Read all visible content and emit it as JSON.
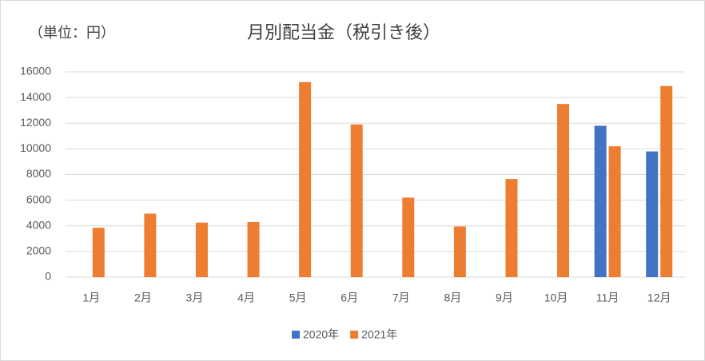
{
  "chart_data": {
    "type": "bar",
    "title": "月別配当金（税引き後）",
    "unit_label": "（単位：円）",
    "categories": [
      "1月",
      "2月",
      "3月",
      "4月",
      "5月",
      "6月",
      "7月",
      "8月",
      "9月",
      "10月",
      "11月",
      "12月"
    ],
    "series": [
      {
        "name": "2020年",
        "color": "#4472c4",
        "values": [
          null,
          null,
          null,
          null,
          null,
          null,
          null,
          null,
          null,
          null,
          11800,
          9800
        ]
      },
      {
        "name": "2021年",
        "color": "#ed7d31",
        "values": [
          3850,
          4950,
          4250,
          4300,
          15200,
          11900,
          6200,
          3950,
          7650,
          13500,
          10200,
          14900
        ]
      }
    ],
    "ylim": [
      0,
      16000
    ],
    "yticks": [
      0,
      2000,
      4000,
      6000,
      8000,
      10000,
      12000,
      14000,
      16000
    ],
    "grid": true,
    "legend": "bottom"
  }
}
